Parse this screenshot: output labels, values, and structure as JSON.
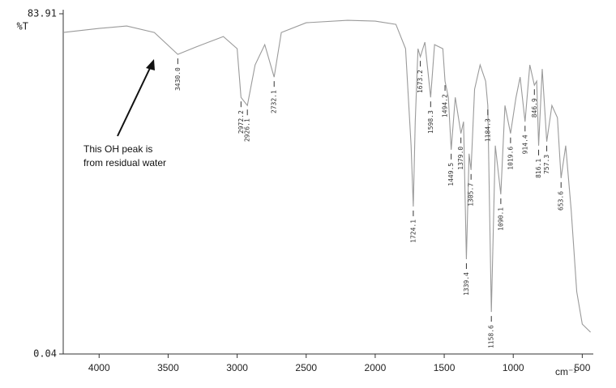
{
  "chart_data": {
    "type": "line",
    "y_axis_label": "%T",
    "x_axis_label": "cm⁻¹",
    "xlim": [
      4260,
      420
    ],
    "ylim": [
      0.04,
      83.91
    ],
    "xticks": [
      4000,
      3500,
      3000,
      2500,
      2000,
      1500,
      1000,
      500
    ],
    "yticks": [
      0.04,
      83.91
    ],
    "color": "#9a9a9a",
    "x": [
      4260,
      4000,
      3800,
      3600,
      3430.0,
      3300,
      3100,
      3000,
      2972.2,
      2926.1,
      2870,
      2800,
      2732.1,
      2680,
      2500,
      2200,
      2000,
      1850,
      1780,
      1740,
      1724.1,
      1710,
      1690,
      1673.2,
      1640,
      1598.3,
      1570,
      1510,
      1494.2,
      1470,
      1449.5,
      1420,
      1379.0,
      1360,
      1339.4,
      1320,
      1305.7,
      1280,
      1240,
      1200,
      1184.3,
      1158.6,
      1130,
      1090.1,
      1060,
      1019.6,
      980,
      950,
      914.4,
      880,
      846.9,
      830,
      816.1,
      790,
      757.3,
      720,
      680,
      653.6,
      620,
      580,
      540,
      500,
      440
    ],
    "values": [
      79.3,
      80.3,
      80.9,
      79.3,
      73.9,
      75.7,
      78.3,
      75.3,
      63.3,
      61.3,
      71.3,
      76.3,
      68.3,
      79.3,
      81.7,
      82.3,
      82.1,
      81.3,
      75.3,
      51.4,
      36.4,
      57.3,
      75.3,
      73.3,
      76.9,
      63.3,
      76.3,
      75.3,
      67.3,
      63.3,
      50.4,
      63.3,
      54.4,
      57.3,
      23.4,
      49.4,
      45.4,
      65.3,
      71.3,
      67.3,
      61.3,
      10.4,
      51.4,
      39.4,
      61.3,
      54.4,
      63.3,
      68.3,
      57.3,
      71.3,
      66.3,
      67.3,
      51.4,
      70.3,
      52.4,
      61.3,
      58.3,
      43.4,
      51.4,
      35.4,
      15.4,
      7.4,
      5.4
    ],
    "peaks": [
      {
        "value": 3430,
        "label": "3430.0"
      },
      {
        "value": 2972.2,
        "label": "2972.2"
      },
      {
        "value": 2926.1,
        "label": "2926.1"
      },
      {
        "value": 2732.1,
        "label": "2732.1"
      },
      {
        "value": 1724.1,
        "label": "1724.1"
      },
      {
        "value": 1673.2,
        "label": "1673.2"
      },
      {
        "value": 1598.3,
        "label": "1598.3"
      },
      {
        "value": 1494.2,
        "label": "1494.2"
      },
      {
        "value": 1449.5,
        "label": "1449.5"
      },
      {
        "value": 1379,
        "label": "1379.0"
      },
      {
        "value": 1339.4,
        "label": "1339.4"
      },
      {
        "value": 1305.7,
        "label": "1305.7"
      },
      {
        "value": 1184.3,
        "label": "1184.3"
      },
      {
        "value": 1158.6,
        "label": "1158.6"
      },
      {
        "value": 1090.1,
        "label": "1090.1"
      },
      {
        "value": 1019.6,
        "label": "1019.6"
      },
      {
        "value": 914.4,
        "label": "914.4"
      },
      {
        "value": 846.9,
        "label": "846.9"
      },
      {
        "value": 816.1,
        "label": "816.1"
      },
      {
        "value": 757.3,
        "label": "757.3"
      },
      {
        "value": 653.6,
        "label": "653.6"
      }
    ],
    "annotation": [
      "This OH peak is",
      "from residual water"
    ]
  }
}
